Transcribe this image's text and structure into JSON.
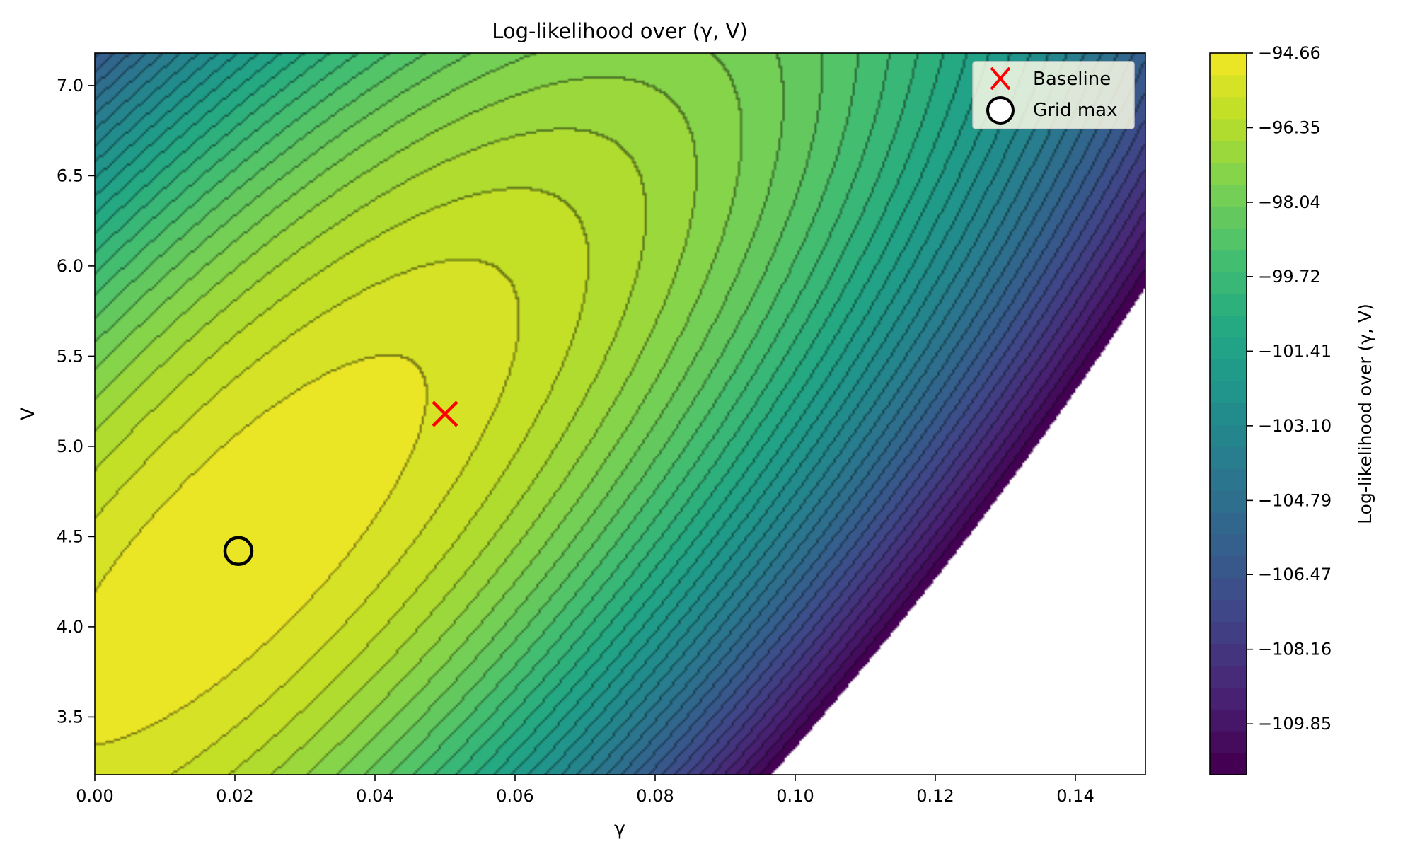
{
  "chart_data": {
    "type": "contour",
    "title": "Log-likelihood over (γ, V)",
    "xlabel": "γ",
    "ylabel": "V",
    "xlim": [
      0.0,
      0.15
    ],
    "ylim": [
      3.18,
      7.18
    ],
    "xticks": [
      0.0,
      0.02,
      0.04,
      0.06,
      0.08,
      0.1,
      0.12,
      0.14
    ],
    "xtick_labels": [
      "0.00",
      "0.02",
      "0.04",
      "0.06",
      "0.08",
      "0.10",
      "0.12",
      "0.14"
    ],
    "yticks": [
      3.5,
      4.0,
      4.5,
      5.0,
      5.5,
      6.0,
      6.5,
      7.0
    ],
    "ytick_labels": [
      "3.5",
      "4.0",
      "4.5",
      "5.0",
      "5.5",
      "6.0",
      "6.5",
      "7.0"
    ],
    "colorbar": {
      "label": "Log-likelihood over (γ, V)",
      "range": [
        -111.0,
        -94.66
      ],
      "ticks": [
        -94.66,
        -96.35,
        -98.04,
        -99.72,
        -101.41,
        -103.1,
        -104.79,
        -106.47,
        -108.16,
        -109.85
      ],
      "tick_labels": [
        "−94.66",
        "−96.35",
        "−98.04",
        "−99.72",
        "−101.41",
        "−103.10",
        "−104.79",
        "−106.47",
        "−108.16",
        "−109.85"
      ],
      "colormap": "viridis"
    },
    "markers": [
      {
        "name": "Baseline",
        "x": 0.05,
        "y": 5.18,
        "symbol": "x",
        "color": "#ff0000"
      },
      {
        "name": "Grid max",
        "x": 0.0205,
        "y": 4.42,
        "symbol": "circle",
        "color": "#000000"
      }
    ],
    "legend": {
      "placement": "top-right",
      "entries": [
        "Baseline",
        "Grid max"
      ]
    },
    "grid": false
  }
}
